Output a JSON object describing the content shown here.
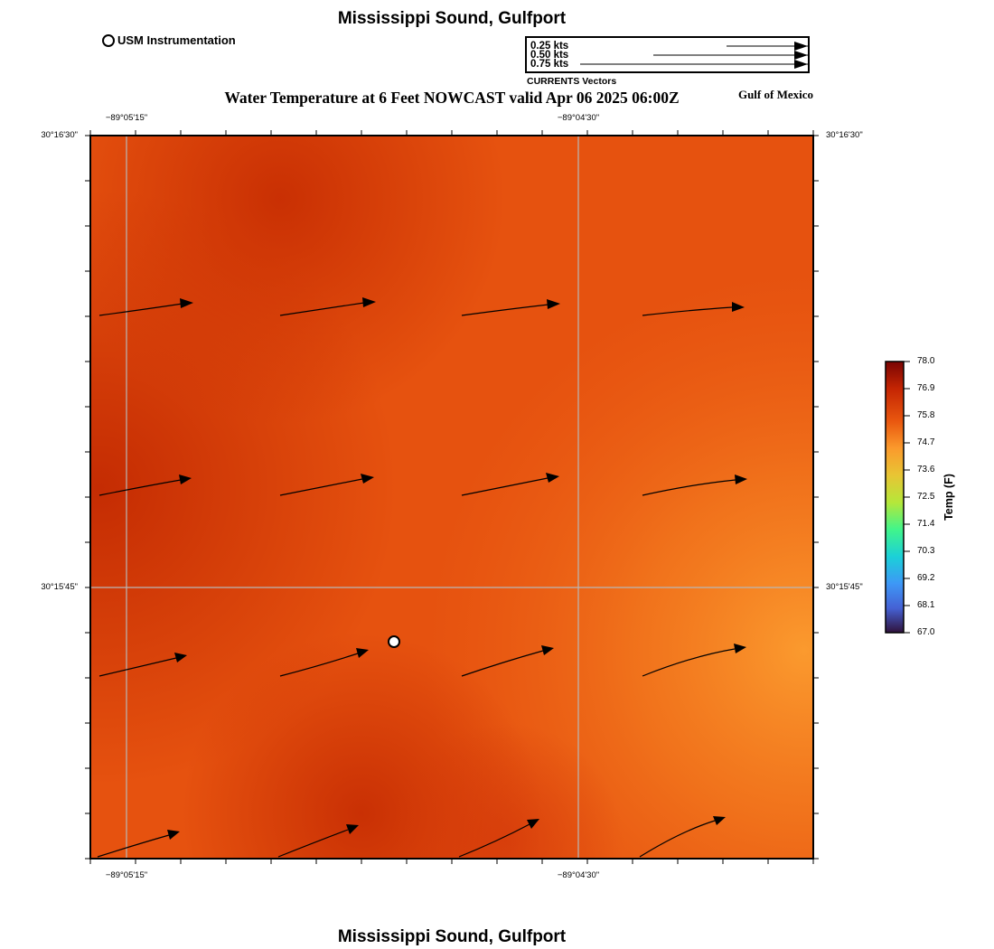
{
  "map": {
    "title_top": "Mississippi Sound, Gulfport",
    "title_bottom": "Mississippi Sound, Gulfport",
    "subtitle": "Water Temperature at 6 Feet NOWCAST valid Apr 06 2025 06:00Z",
    "region": "Gulf of Mexico",
    "station_legend": "USM Instrumentation",
    "vector_legend": {
      "caption": "CURRENTS Vectors",
      "rows": [
        {
          "label": "0.25 kts",
          "speed_kts": 0.25
        },
        {
          "label": "0.50 kts",
          "speed_kts": 0.5
        },
        {
          "label": "0.75 kts",
          "speed_kts": 0.75
        }
      ]
    },
    "axes": {
      "top_ticks": [
        "−89°05'15\"",
        "−89°04'30\""
      ],
      "bottom_ticks": [
        "−89°05'15\"",
        "−89°04'30\""
      ],
      "left_ticks": [
        "30°16'30\"",
        "30°15'45\""
      ],
      "right_ticks": [
        "30°16'30\"",
        "30°15'45\""
      ]
    },
    "colorbar": {
      "title": "Temp (F)",
      "ticks": [
        "78.0",
        "76.9",
        "75.8",
        "74.7",
        "73.6",
        "72.5",
        "71.4",
        "70.3",
        "69.2",
        "68.1",
        "67.0"
      ],
      "min": 67.0,
      "max": 78.0
    },
    "colors": {
      "warm_dark": "#c92d03",
      "warm_mid": "#e8500f",
      "warm_light": "#f9932a",
      "grid": "#b8b8b8"
    }
  }
}
